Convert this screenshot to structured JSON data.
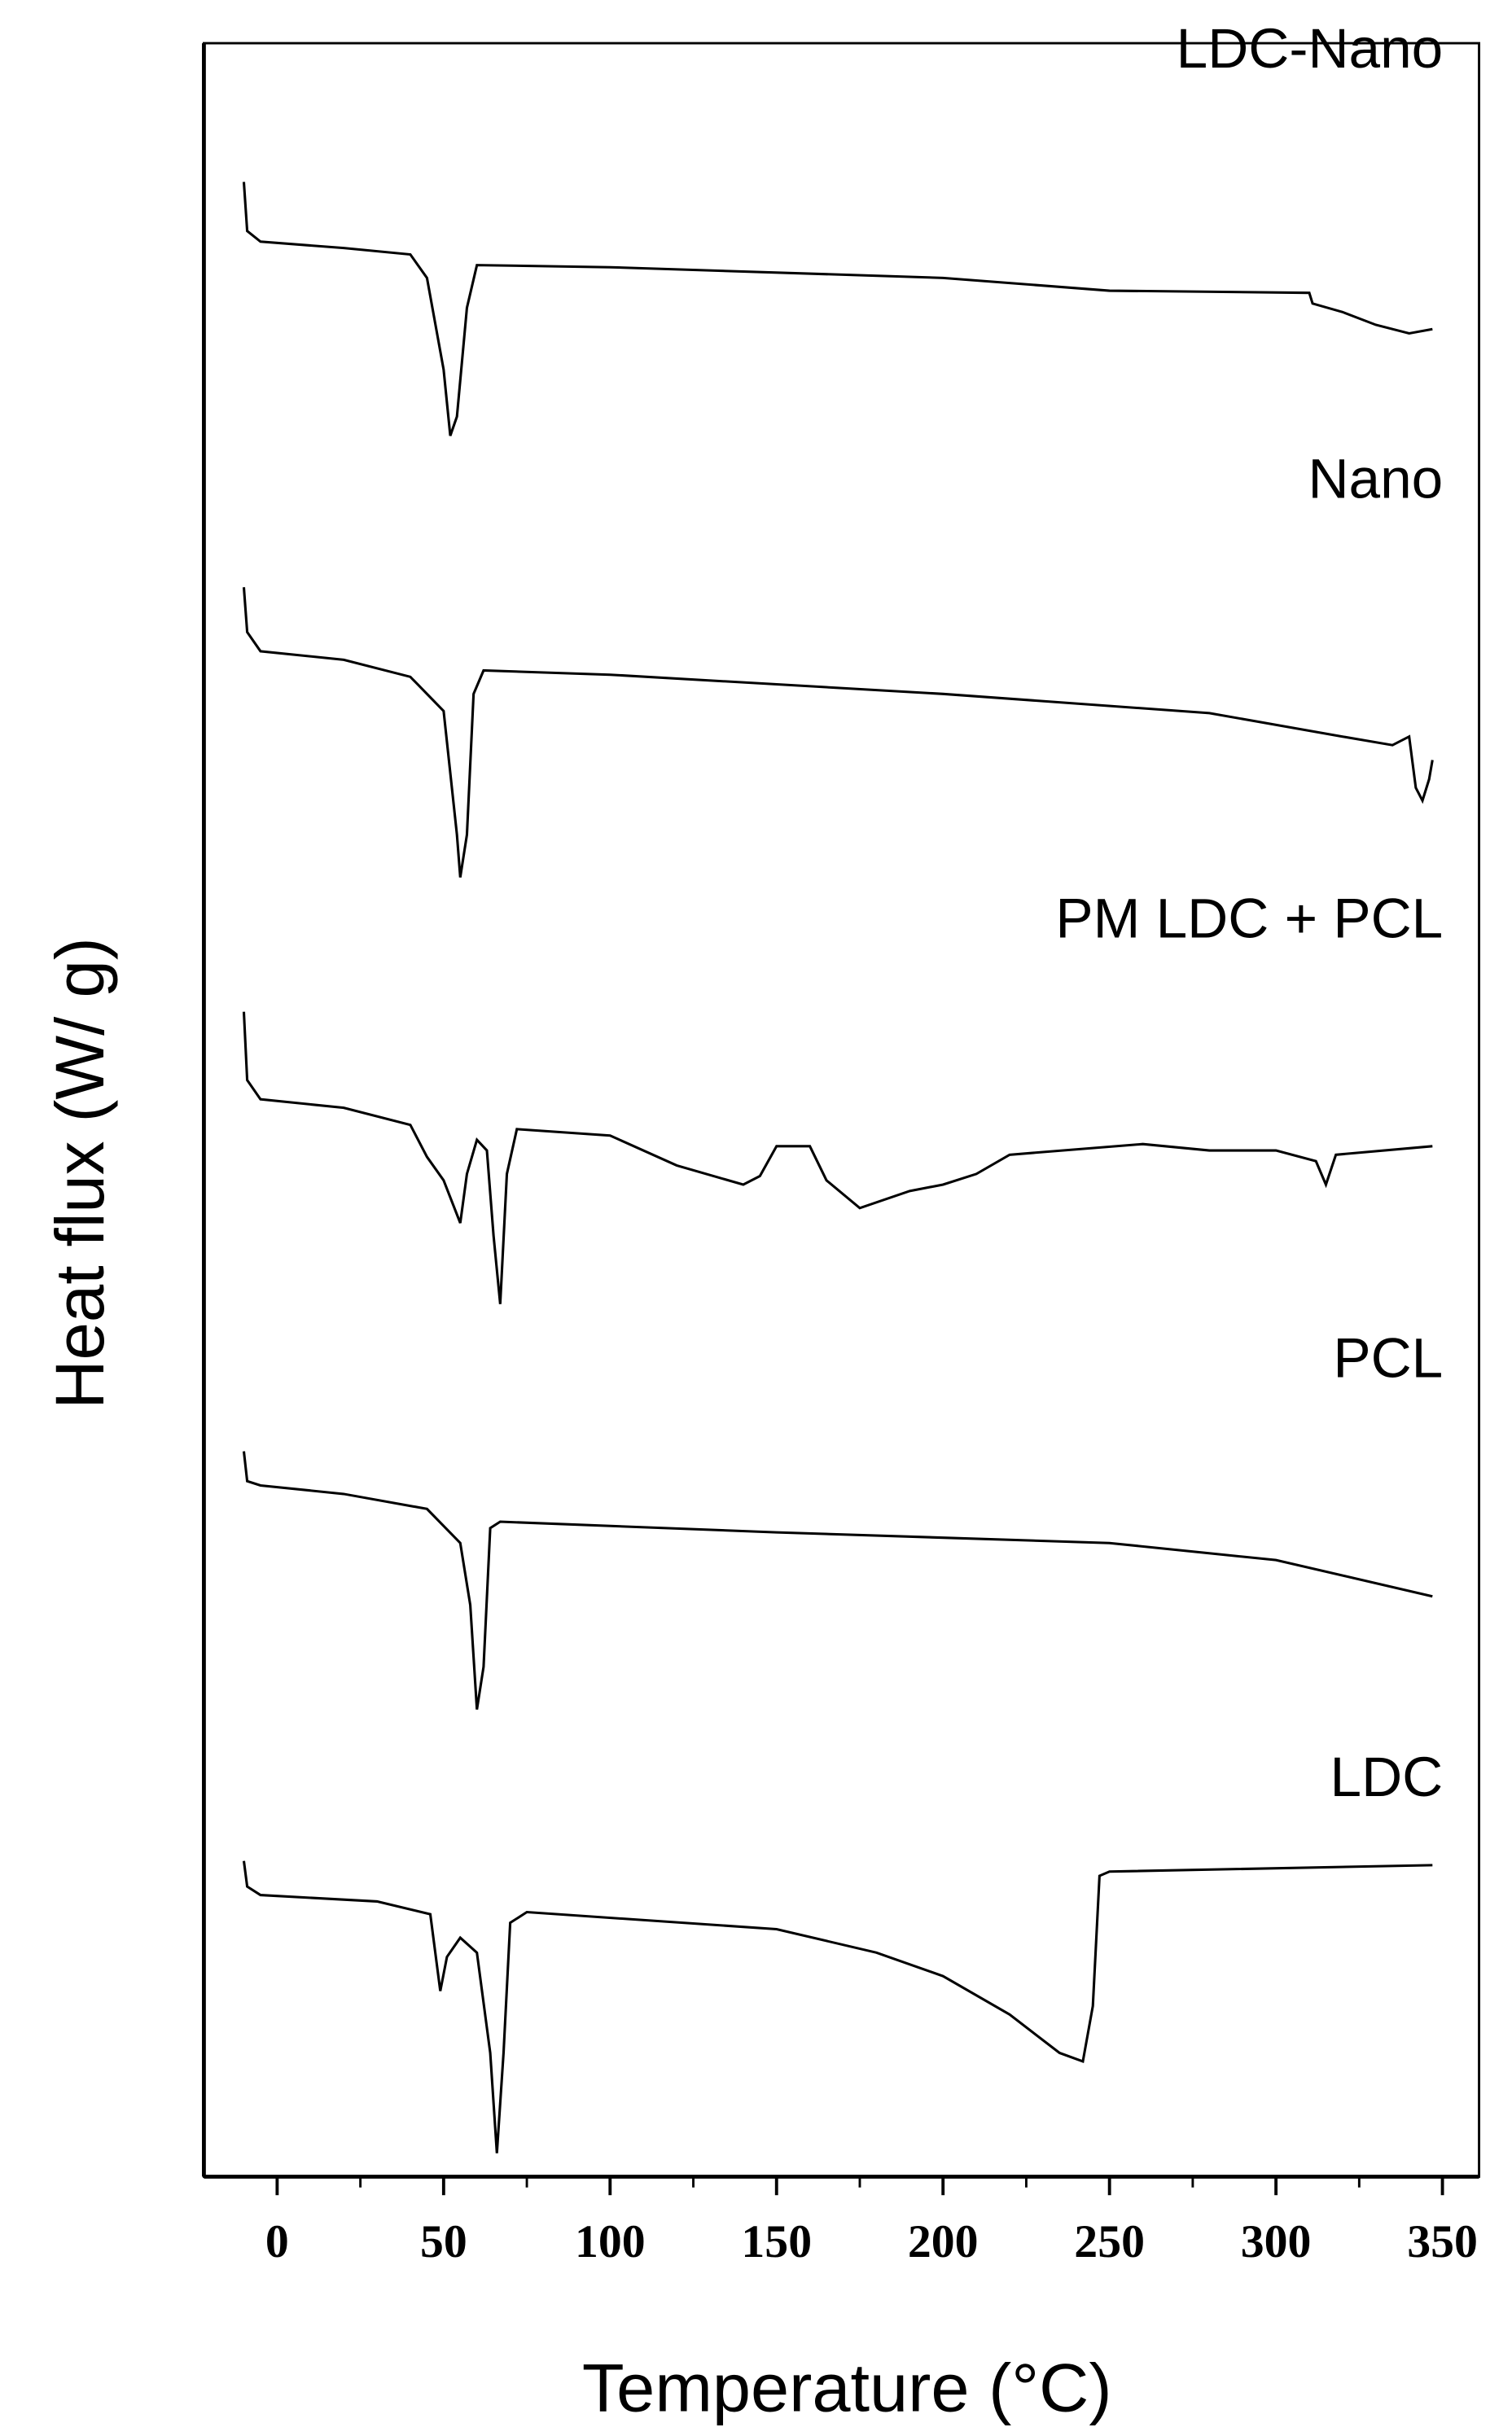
{
  "chart_data": {
    "type": "line",
    "x_label": "Temperature (°C)",
    "y_label": "Heat flux (W/ g)",
    "xlim": [
      -22,
      361
    ],
    "ylim": [
      0,
      100
    ],
    "xticks": [
      0,
      50,
      100,
      150,
      200,
      250,
      300,
      350
    ],
    "series": [
      {
        "name": "LDC-Nano",
        "color": "#000000",
        "x": [
          -10,
          -9,
          -5,
          20,
          40,
          45,
          50,
          52,
          54,
          57,
          60,
          100,
          200,
          250,
          310,
          311,
          320,
          330,
          340,
          347
        ],
        "values": [
          93.5,
          91.2,
          90.7,
          90.4,
          90.1,
          89.0,
          84.7,
          81.6,
          82.5,
          87.6,
          89.6,
          89.5,
          89.0,
          88.4,
          88.3,
          87.8,
          87.4,
          86.8,
          86.4,
          86.6
        ]
      },
      {
        "name": "Nano",
        "color": "#000000",
        "x": [
          -10,
          -9,
          -5,
          20,
          40,
          50,
          54,
          55,
          57,
          59,
          62,
          100,
          200,
          280,
          320,
          335,
          340,
          342,
          344,
          346,
          347
        ],
        "values": [
          74.5,
          72.4,
          71.5,
          71.1,
          70.3,
          68.7,
          62.9,
          60.9,
          62.9,
          69.5,
          70.6,
          70.4,
          69.5,
          68.6,
          67.5,
          67.1,
          67.5,
          65.1,
          64.5,
          65.5,
          66.4
        ]
      },
      {
        "name": "PM LDC + PCL",
        "color": "#000000",
        "x": [
          -10,
          -9,
          -5,
          20,
          40,
          45,
          50,
          55,
          57,
          60,
          63,
          65,
          67,
          69,
          72,
          100,
          120,
          140,
          145,
          150,
          160,
          165,
          175,
          190,
          200,
          210,
          220,
          260,
          280,
          300,
          312,
          315,
          318,
          347
        ],
        "values": [
          54.6,
          51.4,
          50.5,
          50.1,
          49.3,
          47.8,
          46.7,
          44.7,
          47.0,
          48.6,
          48.1,
          44.1,
          40.9,
          47.0,
          49.1,
          48.8,
          47.4,
          46.5,
          46.9,
          48.3,
          48.3,
          46.7,
          45.4,
          46.2,
          46.5,
          47.0,
          47.9,
          48.4,
          48.1,
          48.1,
          47.6,
          46.5,
          47.9,
          48.3
        ]
      },
      {
        "name": "PCL",
        "color": "#000000",
        "x": [
          -10,
          -9,
          -5,
          20,
          45,
          55,
          58,
          60,
          62,
          64,
          67,
          150,
          250,
          300,
          347
        ],
        "values": [
          34.0,
          32.6,
          32.4,
          32.0,
          31.3,
          29.7,
          26.8,
          21.9,
          23.9,
          30.4,
          30.7,
          30.2,
          29.7,
          28.9,
          27.2
        ]
      },
      {
        "name": "LDC",
        "color": "#000000",
        "x": [
          -10,
          -9,
          -5,
          30,
          46,
          49,
          51,
          55,
          60,
          64,
          66,
          68,
          70,
          75,
          150,
          180,
          200,
          220,
          235,
          242,
          245,
          247,
          250,
          347
        ],
        "values": [
          14.8,
          13.6,
          13.2,
          12.9,
          12.3,
          8.7,
          10.3,
          11.2,
          10.5,
          5.8,
          1.1,
          5.8,
          11.9,
          12.4,
          11.6,
          10.5,
          9.4,
          7.6,
          5.8,
          5.4,
          8.0,
          14.1,
          14.3,
          14.6
        ]
      }
    ]
  }
}
